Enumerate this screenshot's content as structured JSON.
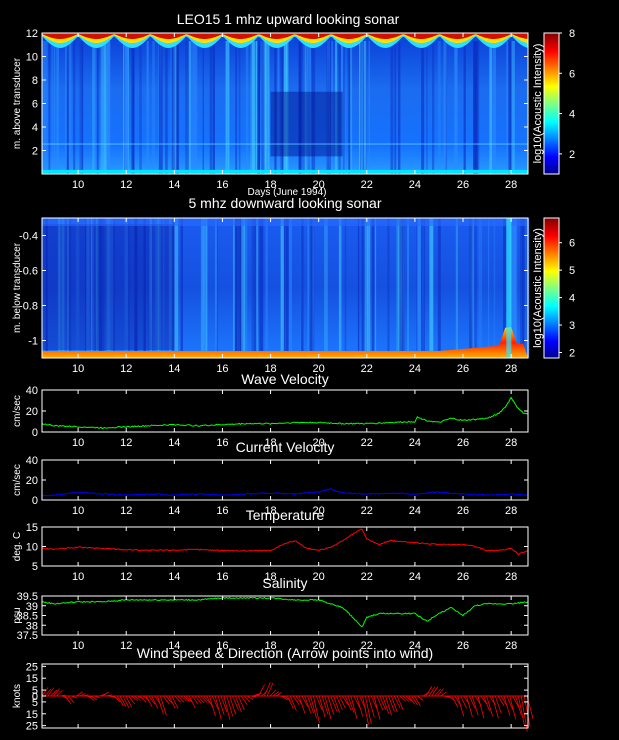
{
  "chart_data": [
    {
      "id": "upward_sonar",
      "type": "heatmap",
      "title": "LEO15   1 mhz upward looking sonar",
      "xlabel": "Days (June 1994)",
      "ylabel": "m. above transducer",
      "xlim": [
        8.5,
        28.7
      ],
      "ylim": [
        0,
        12
      ],
      "xticks": [
        10,
        12,
        14,
        16,
        18,
        20,
        22,
        24,
        26,
        28
      ],
      "yticks": [
        2,
        4,
        6,
        8,
        10,
        12
      ],
      "colorbar": {
        "label": "log10(Acoustic Intensity)",
        "range": [
          1,
          8
        ],
        "ticks": [
          2,
          4,
          6,
          8
        ]
      }
    },
    {
      "id": "downward_sonar",
      "type": "heatmap",
      "title": "5 mhz downward looking sonar",
      "xlabel": "",
      "ylabel": "m. below transducer",
      "xlim": [
        8.5,
        28.7
      ],
      "ylim": [
        -1.1,
        -0.3
      ],
      "xticks": [
        10,
        12,
        14,
        16,
        18,
        20,
        22,
        24,
        26,
        28
      ],
      "yticks": [
        -0.4,
        -0.6,
        -0.8,
        -1
      ],
      "colorbar": {
        "label": "log10(Acoustic Intensity)",
        "range": [
          1.8,
          6.9
        ],
        "ticks": [
          2,
          3,
          4,
          5,
          6
        ]
      }
    },
    {
      "id": "wave_velocity",
      "type": "line",
      "title": "Wave Velocity",
      "ylabel": "cm/sec",
      "xlim": [
        8.5,
        28.7
      ],
      "ylim": [
        0,
        40
      ],
      "xticks": [
        10,
        12,
        14,
        16,
        18,
        20,
        22,
        24,
        26,
        28
      ],
      "yticks": [
        0,
        20,
        40
      ],
      "series": [
        {
          "color": "#00ff00",
          "x": [
            8.5,
            9,
            10,
            11,
            12,
            13,
            14,
            15,
            16,
            17,
            18,
            19,
            20,
            21,
            22,
            23,
            24,
            24.1,
            24.5,
            25,
            25.5,
            26,
            27,
            27.5,
            27.8,
            28,
            28.2,
            28.5,
            28.7
          ],
          "y": [
            8,
            6,
            5,
            4,
            5,
            6,
            7,
            6,
            7,
            8,
            8,
            9,
            9,
            8,
            8,
            9,
            10,
            14,
            11,
            9,
            13,
            11,
            13,
            18,
            25,
            33,
            25,
            18,
            17
          ]
        }
      ]
    },
    {
      "id": "current_velocity",
      "type": "line",
      "title": "Current Velocity",
      "ylabel": "cm/sec",
      "xlim": [
        8.5,
        28.7
      ],
      "ylim": [
        0,
        40
      ],
      "xticks": [
        10,
        12,
        14,
        16,
        18,
        20,
        22,
        24,
        26,
        28
      ],
      "yticks": [
        0,
        20,
        40
      ],
      "series": [
        {
          "color": "#0000ff",
          "x": [
            8.5,
            9,
            10,
            11,
            12,
            13,
            14,
            15,
            16,
            17,
            18,
            19,
            20,
            20.5,
            21,
            22,
            23,
            24,
            25,
            26,
            27,
            28,
            28.7
          ],
          "y": [
            4,
            5,
            8,
            6,
            5,
            6,
            5,
            6,
            5,
            6,
            7,
            6,
            8,
            11,
            7,
            6,
            7,
            6,
            8,
            6,
            5,
            6,
            5
          ]
        }
      ]
    },
    {
      "id": "temperature",
      "type": "line",
      "title": "Temperature",
      "ylabel": "deg. C",
      "xlim": [
        8.5,
        28.7
      ],
      "ylim": [
        5,
        15
      ],
      "xticks": [
        10,
        12,
        14,
        16,
        18,
        20,
        22,
        24,
        26,
        28
      ],
      "yticks": [
        5,
        10,
        15
      ],
      "series": [
        {
          "color": "#ff0000",
          "x": [
            8.5,
            9,
            10,
            11,
            12,
            13,
            14,
            15,
            16,
            17,
            18,
            18.5,
            19,
            19.5,
            20,
            20.5,
            21,
            21.5,
            21.8,
            22,
            22.5,
            23,
            24,
            25,
            26,
            26.5,
            27,
            27.5,
            28,
            28.3,
            28.7
          ],
          "y": [
            9.5,
            9.3,
            9.8,
            9.5,
            9.2,
            9.0,
            9.1,
            9.2,
            9.0,
            8.9,
            9.0,
            10.5,
            11.5,
            9.5,
            9.0,
            9.8,
            11.5,
            13.5,
            14.5,
            12,
            10.5,
            11.5,
            11,
            10.5,
            10.5,
            10,
            9,
            9,
            9.5,
            8,
            9
          ]
        }
      ]
    },
    {
      "id": "salinity",
      "type": "line",
      "title": "Salinity",
      "ylabel": "psu",
      "xlim": [
        8.5,
        28.7
      ],
      "ylim": [
        37.5,
        39.5
      ],
      "xticks": [
        10,
        12,
        14,
        16,
        18,
        20,
        22,
        24,
        26,
        28
      ],
      "yticks": [
        37.5,
        38,
        38.5,
        39,
        39.5
      ],
      "yticklabels": [
        "37.5",
        "38",
        "38.5",
        "39",
        "39.5"
      ],
      "series": [
        {
          "color": "#00ff00",
          "x": [
            8.5,
            9,
            10,
            11,
            12,
            13,
            14,
            15,
            16,
            17,
            18,
            19,
            20,
            20.5,
            21,
            21.5,
            21.8,
            22,
            22.5,
            23,
            24,
            24.5,
            25,
            25.5,
            26,
            26.5,
            27,
            28,
            28.7
          ],
          "y": [
            39.2,
            39.1,
            39.2,
            39.2,
            39.3,
            39.3,
            39.3,
            39.3,
            39.4,
            39.4,
            39.4,
            39.3,
            39.3,
            39.1,
            38.9,
            38.3,
            37.9,
            38.4,
            38.6,
            38.6,
            38.6,
            38.2,
            38.6,
            38.9,
            38.5,
            39.0,
            39.1,
            39.1,
            39.2
          ]
        }
      ]
    },
    {
      "id": "wind",
      "type": "line",
      "title": "Wind speed & Direction (Arrow points into wind)",
      "ylabel": "knots",
      "xlim": [
        8.5,
        28.7
      ],
      "ylim": [
        -27,
        27
      ],
      "xticks": [
        10,
        12,
        14,
        16,
        18,
        20,
        22,
        24,
        26,
        28
      ],
      "yticks": [
        -25,
        -15,
        -5,
        0,
        5,
        15,
        25
      ],
      "yticklabels": [
        "25",
        "15",
        "5",
        "0",
        "5",
        "15",
        "25"
      ],
      "series": [
        {
          "color": "#ff0000",
          "x": [
            8.5,
            9,
            9.5,
            10,
            10.5,
            11,
            11.5,
            12,
            12.5,
            13,
            13.5,
            14,
            14.5,
            15,
            15.5,
            16,
            16.5,
            17,
            17.5,
            18,
            18.5,
            19,
            19.5,
            20,
            20.5,
            21,
            21.5,
            22,
            22.5,
            23,
            23.5,
            24,
            24.5,
            25,
            25.5,
            26,
            26.5,
            27,
            27.5,
            28,
            28.3,
            28.7
          ],
          "y": [
            5,
            7,
            -6,
            4,
            -4,
            3,
            -5,
            -8,
            -3,
            -10,
            -12,
            -6,
            -8,
            -4,
            -12,
            -15,
            -10,
            -5,
            8,
            9,
            -6,
            -15,
            -12,
            -18,
            -14,
            -12,
            -15,
            -18,
            -16,
            -10,
            -8,
            -6,
            7,
            4,
            -10,
            -14,
            -12,
            -15,
            -10,
            -18,
            -22,
            -18
          ]
        }
      ]
    }
  ]
}
